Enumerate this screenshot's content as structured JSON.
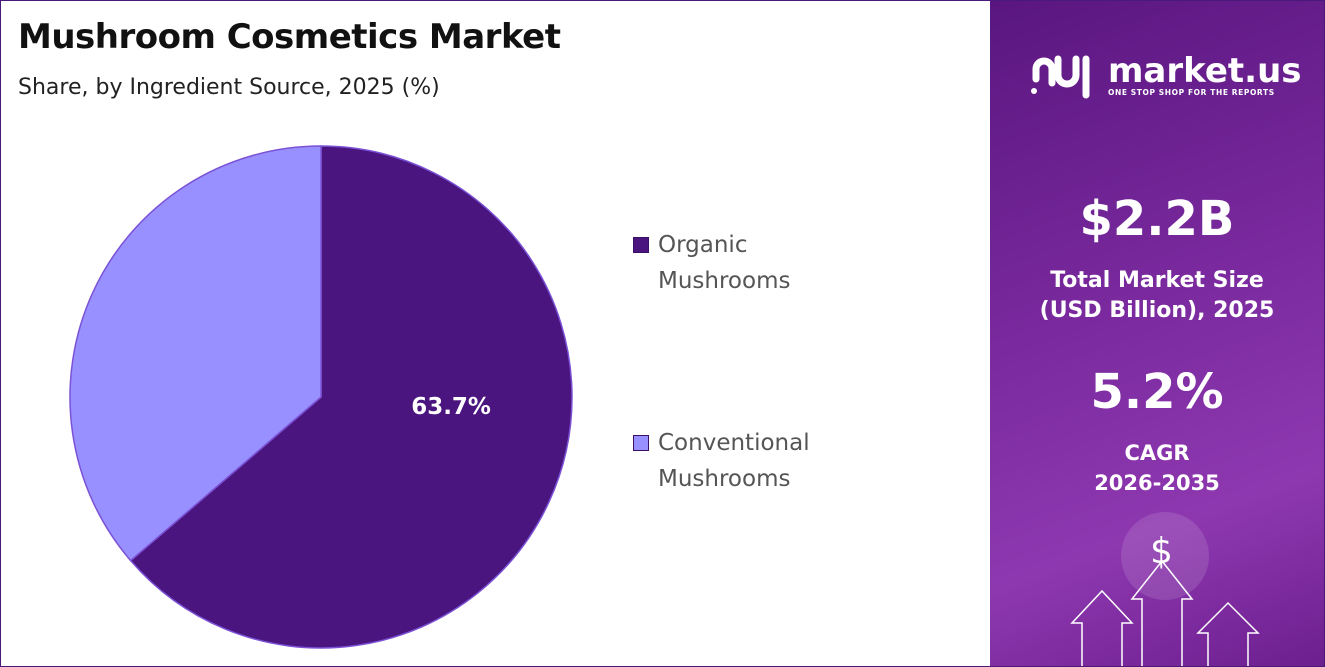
{
  "chart_data": {
    "type": "pie",
    "title": "Mushroom Cosmetics Market",
    "subtitle": "Share, by Ingredient Source, 2025 (%)",
    "categories": [
      "Organic Mushrooms",
      "Conventional Mushrooms"
    ],
    "values": [
      63.7,
      36.3
    ],
    "value_labels": [
      "63.7%",
      null
    ],
    "colors": [
      "#4b1580",
      "#9990ff"
    ],
    "legend": "right"
  },
  "panel": {
    "brand": "market.us",
    "tagline": "ONE STOP SHOP FOR THE REPORTS",
    "market_size": "$2.2B",
    "market_size_label": [
      "Total Market Size",
      "(USD Billion), 2025"
    ],
    "cagr": "5.2%",
    "cagr_label": [
      "CAGR",
      "2026-2035"
    ],
    "symbol": "$"
  }
}
